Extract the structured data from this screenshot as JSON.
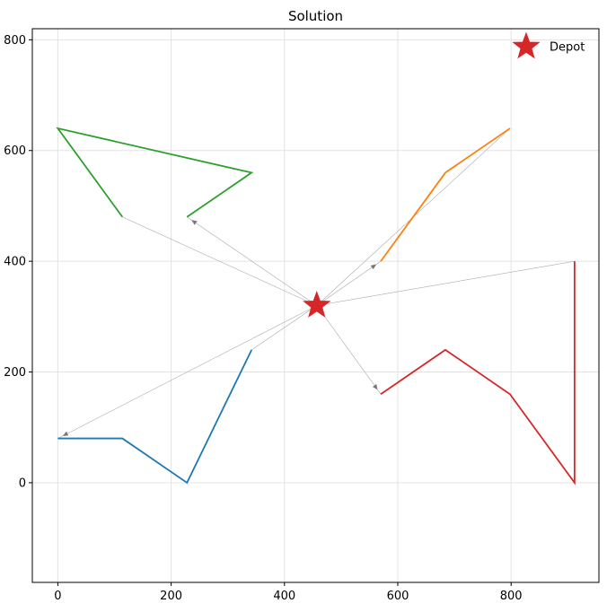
{
  "chart_data": {
    "type": "line",
    "title": "Solution",
    "xlabel": "",
    "ylabel": "",
    "xlim": [
      -45,
      955
    ],
    "ylim": [
      -180,
      820
    ],
    "x_ticks": [
      0,
      200,
      400,
      600,
      800
    ],
    "y_ticks": [
      0,
      200,
      400,
      600,
      800
    ],
    "grid": true,
    "depot": {
      "label": "Depot",
      "x": 457,
      "y": 320,
      "color": "#d62728"
    },
    "legend": {
      "placement": "top-right",
      "entries": [
        "Depot"
      ]
    },
    "connector_color": "#aaaaaa",
    "series": [
      {
        "color": "#1f77b4",
        "points": [
          [
            0,
            80
          ],
          [
            114,
            80
          ],
          [
            228,
            0
          ],
          [
            342,
            240
          ]
        ]
      },
      {
        "color": "#ff7f0e",
        "points": [
          [
            570,
            400
          ],
          [
            684,
            560
          ],
          [
            798,
            640
          ]
        ]
      },
      {
        "color": "#2ca02c",
        "points": [
          [
            228,
            480
          ],
          [
            342,
            560
          ],
          [
            0,
            640
          ],
          [
            114,
            480
          ]
        ]
      },
      {
        "color": "#d62728",
        "points": [
          [
            570,
            160
          ],
          [
            684,
            240
          ],
          [
            798,
            160
          ],
          [
            912,
            0
          ],
          [
            912,
            400
          ]
        ]
      }
    ]
  }
}
